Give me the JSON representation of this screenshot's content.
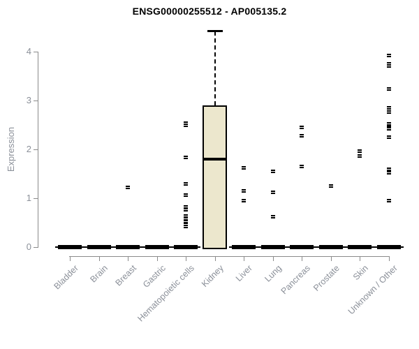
{
  "colors": {
    "title": "#000000",
    "axis": "#8a8a8a",
    "tick_label": "#8b9099",
    "box_fill": "#ECE7CD",
    "box_border": "#000000",
    "marker": "#000000",
    "background": "#ffffff"
  },
  "chart_data": {
    "type": "boxplot",
    "title": "ENSG00000255512 - AP005135.2",
    "ylabel": "Expression",
    "xlabel": "",
    "yticks": [
      0,
      1,
      2,
      3,
      4
    ],
    "ylim": [
      0,
      4.5
    ],
    "grid": false,
    "legend": "none",
    "categories": [
      "Bladder",
      "Brain",
      "Breast",
      "Gastric",
      "Hematopoietic cells",
      "Kidney",
      "Liver",
      "Lung",
      "Pancreas",
      "Prostate",
      "Skin",
      "Unknown / Other"
    ],
    "boxes": [
      {
        "category": "Bladder",
        "q1": 0,
        "median": 0,
        "q3": 0,
        "whisker_low": 0,
        "whisker_high": 0,
        "points": []
      },
      {
        "category": "Brain",
        "q1": 0,
        "median": 0,
        "q3": 0,
        "whisker_low": 0,
        "whisker_high": 0,
        "points": []
      },
      {
        "category": "Breast",
        "q1": 0,
        "median": 0,
        "q3": 0,
        "whisker_low": 0,
        "whisker_high": 0,
        "points": [
          1.22
        ]
      },
      {
        "category": "Gastric",
        "q1": 0,
        "median": 0,
        "q3": 0,
        "whisker_low": 0,
        "whisker_high": 0,
        "points": []
      },
      {
        "category": "Hematopoietic cells",
        "q1": 0,
        "median": 0,
        "q3": 0,
        "whisker_low": 0,
        "whisker_high": 0,
        "points": [
          2.53,
          2.49,
          1.83,
          1.29,
          1.06,
          0.81,
          0.76,
          0.63,
          0.57,
          0.51,
          0.46,
          0.41
        ]
      },
      {
        "category": "Kidney",
        "q1": 0,
        "median": 1.8,
        "q3": 2.9,
        "whisker_low": 0,
        "whisker_high": 4.43,
        "points": []
      },
      {
        "category": "Liver",
        "q1": 0,
        "median": 0,
        "q3": 0,
        "whisker_low": 0,
        "whisker_high": 0,
        "points": [
          1.61,
          1.14,
          0.94
        ]
      },
      {
        "category": "Lung",
        "q1": 0,
        "median": 0,
        "q3": 0,
        "whisker_low": 0,
        "whisker_high": 0,
        "points": [
          1.54,
          1.11,
          0.61
        ]
      },
      {
        "category": "Pancreas",
        "q1": 0,
        "median": 0,
        "q3": 0,
        "whisker_low": 0,
        "whisker_high": 0,
        "points": [
          2.45,
          2.27,
          1.64
        ]
      },
      {
        "category": "Prostate",
        "q1": 0,
        "median": 0,
        "q3": 0,
        "whisker_low": 0,
        "whisker_high": 0,
        "points": [
          1.24
        ]
      },
      {
        "category": "Skin",
        "q1": 0,
        "median": 0,
        "q3": 0,
        "whisker_low": 0,
        "whisker_high": 0,
        "points": [
          1.96,
          1.86
        ]
      },
      {
        "category": "Unknown / Other",
        "q1": 0,
        "median": 0,
        "q3": 0,
        "whisker_low": 0,
        "whisker_high": 0,
        "points": [
          3.91,
          3.75,
          3.7,
          3.23,
          2.84,
          2.76,
          2.52,
          2.45,
          2.42,
          2.24,
          1.59,
          1.51,
          0.95
        ]
      }
    ]
  }
}
